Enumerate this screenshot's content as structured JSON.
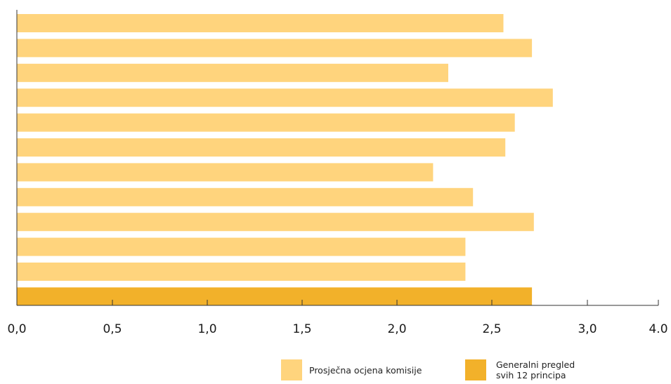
{
  "chart_data": {
    "type": "bar",
    "orientation": "horizontal",
    "categories": [
      "",
      "",
      "",
      "",
      "",
      "",
      "",
      "",
      "",
      "",
      "",
      ""
    ],
    "values": [
      2.56,
      2.71,
      2.27,
      2.82,
      2.62,
      2.57,
      2.19,
      2.4,
      2.72,
      2.36,
      2.36,
      2.71
    ],
    "bar_colors": [
      "#FFD47D",
      "#FFD47D",
      "#FFD47D",
      "#FFD47D",
      "#FFD47D",
      "#FFD47D",
      "#FFD47D",
      "#FFD47D",
      "#FFD47D",
      "#FFD47D",
      "#FFD47D",
      "#F2B12A"
    ],
    "xlim": [
      0,
      4
    ],
    "xticks": [
      0,
      0.5,
      1,
      1.5,
      2,
      2.5,
      3,
      4
    ],
    "xtick_labels": [
      "0,0",
      "0,5",
      "1,0",
      "1,5",
      "2,0",
      "2,5",
      "3,0",
      "4.0"
    ],
    "title": "",
    "xlabel": "",
    "ylabel": "",
    "grid": false,
    "legend_position": "bottom-right",
    "legend": [
      {
        "label": "Prosječna ocjena komisije",
        "color": "#FFD47D"
      },
      {
        "label": "Generalni pregled\nsvih 12 principa",
        "color": "#F2B12A"
      }
    ]
  }
}
